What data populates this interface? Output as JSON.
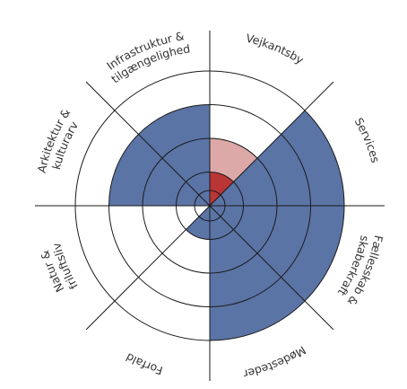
{
  "chart_data": {
    "type": "polar-area",
    "rings": 4,
    "categories": [
      {
        "lines": [
          "Vejkantsby"
        ],
        "side": "right"
      },
      {
        "lines": [
          "Services"
        ],
        "side": "right"
      },
      {
        "lines": [
          "Fællesskab &",
          "skaberkraft"
        ],
        "side": "right"
      },
      {
        "lines": [
          "Mødesteder"
        ],
        "side": "right"
      },
      {
        "lines": [
          "Forfald"
        ],
        "side": "left"
      },
      {
        "lines": [
          "Natur &",
          "friluftsliv"
        ],
        "side": "left"
      },
      {
        "lines": [
          "Arkitektur &",
          "kulturarv"
        ],
        "side": "left"
      },
      {
        "lines": [
          "Infrastruktur &",
          "tilgængelighed"
        ],
        "side": "left"
      }
    ],
    "series": [
      {
        "values": [
          0,
          4,
          4,
          4,
          1,
          0,
          0,
          0
        ]
      },
      {
        "values": [
          1,
          1,
          0,
          0,
          1,
          0,
          0,
          0
        ]
      },
      {
        "values": [
          2,
          0,
          0,
          0,
          0,
          0,
          0,
          0
        ]
      },
      {
        "values": [
          0,
          0,
          0,
          0,
          0,
          0,
          3,
          3
        ]
      }
    ],
    "colors": {
      "blue": "#5b74a6",
      "red": "#ba3536",
      "pink": "#dca8a8",
      "line": "#1a1a1a"
    }
  }
}
